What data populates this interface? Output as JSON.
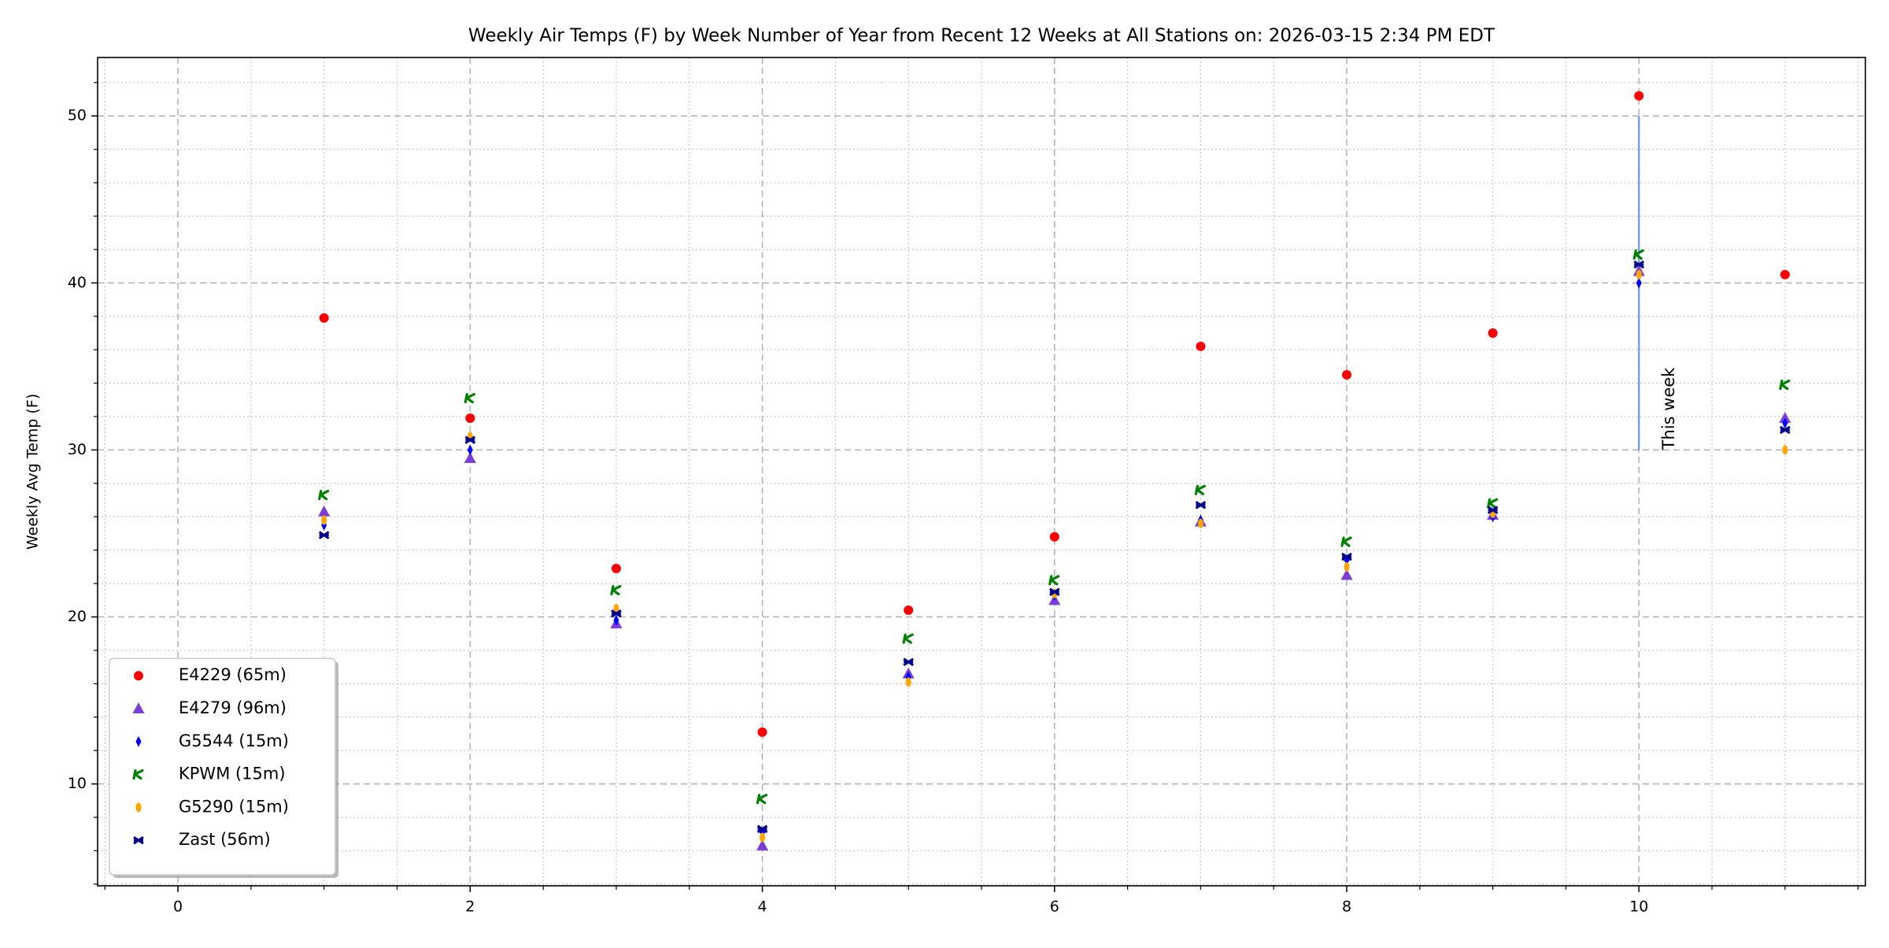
{
  "chart_data": {
    "type": "scatter",
    "title": "Weekly Air Temps (F) by Week Number of Year from Recent 12 Weeks at All Stations on: 2026-03-15 2:34 PM EDT",
    "y_label": "Weekly Avg Temp (F)",
    "x": [
      1,
      2,
      3,
      4,
      5,
      6,
      7,
      8,
      9,
      10,
      11
    ],
    "series": [
      {
        "name": "E4229 (65m)",
        "color": "#ff0000",
        "marker": "circle",
        "values": [
          37.9,
          31.9,
          22.9,
          13.1,
          20.4,
          24.8,
          36.2,
          34.5,
          37.0,
          51.2,
          40.5
        ]
      },
      {
        "name": "E4279 (96m)",
        "color": "#7b3fd6",
        "marker": "triangle",
        "values": [
          26.3,
          29.5,
          19.6,
          6.3,
          16.6,
          21.0,
          25.7,
          22.5,
          26.1,
          40.7,
          31.9
        ]
      },
      {
        "name": "G5544 (15m)",
        "color": "#0000ff",
        "marker": "diamond",
        "values": [
          25.5,
          30.0,
          19.8,
          7.1,
          16.4,
          21.3,
          25.8,
          23.4,
          26.0,
          40.0,
          31.6
        ]
      },
      {
        "name": "KPWM (15m)",
        "color": "#008000",
        "marker": "kappa",
        "values": [
          27.3,
          33.1,
          21.6,
          9.1,
          18.7,
          22.2,
          27.6,
          24.5,
          26.8,
          41.7,
          33.9
        ]
      },
      {
        "name": "G5290 (15m)",
        "color": "#ffa500",
        "marker": "ellipse",
        "values": [
          25.8,
          30.8,
          20.5,
          6.8,
          16.1,
          21.4,
          25.6,
          23.0,
          26.2,
          40.5,
          30.0
        ]
      },
      {
        "name": "Zast (56m)",
        "color": "#00008b",
        "marker": "cross",
        "values": [
          24.9,
          30.6,
          20.2,
          7.3,
          17.3,
          21.5,
          26.7,
          23.6,
          26.4,
          41.1,
          31.2
        ]
      }
    ],
    "vline": {
      "x": 10,
      "y": [
        30,
        50
      ],
      "color": "#6495ed"
    },
    "annotation": {
      "text": "This week",
      "x": 10.15,
      "y": 30
    },
    "xlim": [
      -0.55,
      11.55
    ],
    "ylim": [
      3.9,
      53.5
    ],
    "xticks": [
      0,
      2,
      4,
      6,
      8,
      10
    ],
    "yticks": [
      10,
      20,
      30,
      40,
      50
    ],
    "xminorticks": [
      -0.5,
      0.5,
      1,
      1.5,
      2.5,
      3,
      3.5,
      4.5,
      5,
      5.5,
      6.5,
      7,
      7.5,
      8.5,
      9,
      9.5,
      10.5,
      11,
      11.5
    ],
    "yminorticks": [
      4,
      6,
      8,
      12,
      14,
      16,
      18,
      22,
      24,
      26,
      28,
      32,
      34,
      36,
      38,
      42,
      44,
      46,
      48,
      52
    ],
    "grid": true,
    "legend": "lower left"
  }
}
